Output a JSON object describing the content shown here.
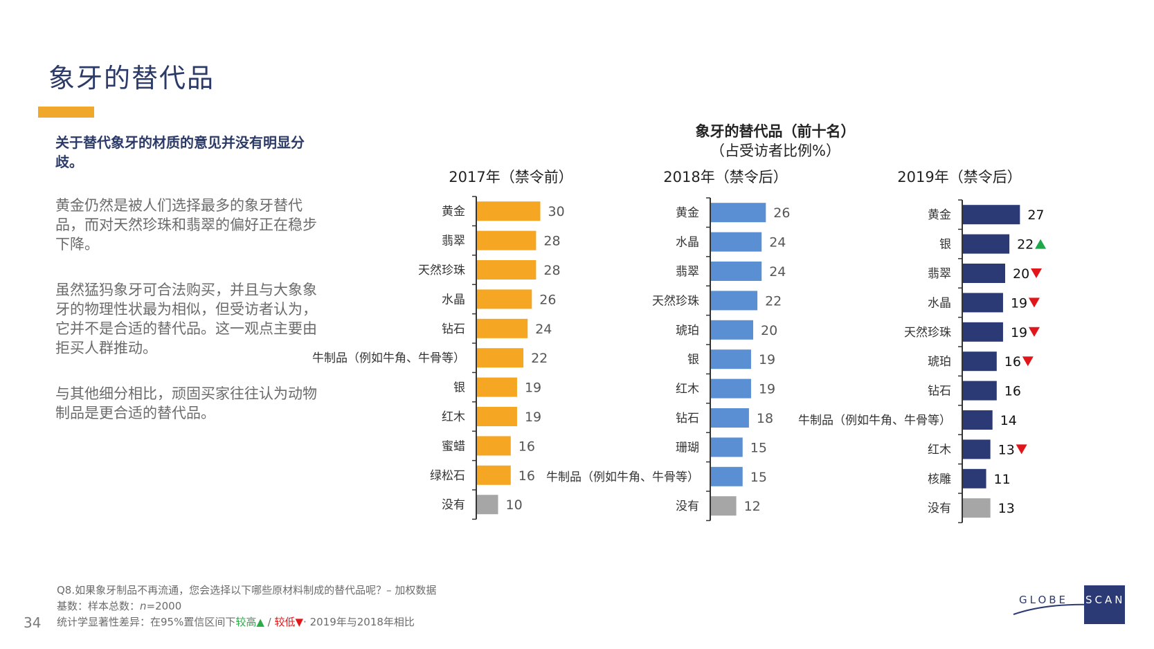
{
  "page": {
    "title": "象牙的替代品",
    "headline": "关于替代象牙的材质的意见并没有明显分歧。",
    "paragraphs": [
      "黄金仍然是被人们选择最多的象牙替代品，而对天然珍珠和翡翠的偏好正在稳步下降。",
      "虽然猛犸象牙可合法购买，并且与大象象牙的物理性状最为相似，但受访者认为，它并不是合适的替代品。这一观点主要由拒买人群推动。",
      "与其他细分相比，顽固买家往往认为动物制品是更合适的替代品。"
    ],
    "chart_title": "象牙的替代品（前十名）",
    "chart_subtitle": "（占受访者比例%）",
    "footer": {
      "line1": "Q8.如果象牙制品不再流通，您会选择以下哪些原材料制成的替代品呢？– 加权数据",
      "line2_prefix": "基数：样本总数：",
      "line2_n": "n",
      "line2_value": "=2000",
      "line3_prefix": "统计学显著性差异：在95%置信区间下",
      "line3_higher": "较高▲",
      "line3_sep": " / ",
      "line3_lower": "较低▼",
      "line3_suffix": "· 2019年与2018年相比"
    },
    "page_number": "34",
    "logo_text": "GLOBESCAN"
  },
  "colors": {
    "bar_2017": "#f5a623",
    "bar_2018": "#5b8fd4",
    "bar_2019": "#2b3a74",
    "bar_none": "#a6a6a6",
    "up": "#1fa84a",
    "down": "#e0161b",
    "title": "#2b3a67",
    "accent": "#f0a82b"
  },
  "chart_data": [
    {
      "type": "bar",
      "orientation": "horizontal",
      "title": "2017年（禁令前）",
      "categories": [
        "黄金",
        "翡翠",
        "天然珍珠",
        "水晶",
        "钻石",
        "牛制品（例如牛角、牛骨等）",
        "银",
        "红木",
        "蜜蜡",
        "绿松石",
        "没有"
      ],
      "values": [
        30,
        28,
        28,
        26,
        24,
        22,
        19,
        19,
        16,
        16,
        10
      ],
      "significance": [
        "",
        "",
        "",
        "",
        "",
        "",
        "",
        "",
        "",
        "",
        ""
      ]
    },
    {
      "type": "bar",
      "orientation": "horizontal",
      "title": "2018年（禁令后）",
      "categories": [
        "黄金",
        "水晶",
        "翡翠",
        "天然珍珠",
        "琥珀",
        "银",
        "红木",
        "钻石",
        "珊瑚",
        "牛制品（例如牛角、牛骨等）",
        "没有"
      ],
      "values": [
        26,
        24,
        24,
        22,
        20,
        19,
        19,
        18,
        15,
        15,
        12
      ],
      "significance": [
        "",
        "",
        "",
        "",
        "",
        "",
        "",
        "",
        "",
        "",
        ""
      ]
    },
    {
      "type": "bar",
      "orientation": "horizontal",
      "title": "2019年（禁令后）",
      "categories": [
        "黄金",
        "银",
        "翡翠",
        "水晶",
        "天然珍珠",
        "琥珀",
        "钻石",
        "牛制品（例如牛角、牛骨等）",
        "红木",
        "核雕",
        "没有"
      ],
      "values": [
        27,
        22,
        20,
        19,
        19,
        16,
        16,
        14,
        13,
        11,
        13
      ],
      "significance": [
        "",
        "up",
        "down",
        "down",
        "down",
        "down",
        "",
        "",
        "down",
        "",
        ""
      ]
    }
  ]
}
